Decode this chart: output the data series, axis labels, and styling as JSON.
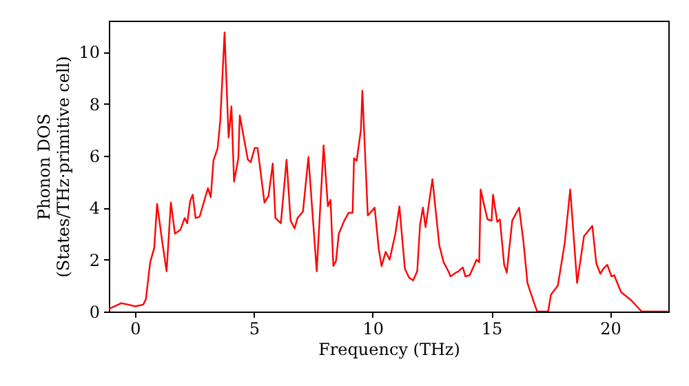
{
  "chart_data": {
    "type": "line",
    "xlabel": "Frequency (THz)",
    "ylabel": "Phonon DOS\n(States/THz·primitive cell)",
    "xlim": [
      -1.1,
      22.45
    ],
    "ylim": [
      0,
      11.2
    ],
    "xticks": [
      0,
      5,
      10,
      15,
      20
    ],
    "yticks": [
      0,
      2,
      4,
      6,
      8,
      10
    ],
    "marker": "none",
    "line_style": "solid",
    "x": [
      -1.1,
      -0.58,
      -0.29,
      0,
      0.35,
      0.46,
      0.64,
      0.81,
      0.93,
      1.16,
      1.33,
      1.51,
      1.68,
      1.91,
      2.09,
      2.2,
      2.32,
      2.43,
      2.55,
      2.72,
      3.07,
      3.19,
      3.3,
      3.48,
      3.59,
      3.77,
      3.94,
      4.06,
      4.17,
      4.35,
      4.41,
      4.58,
      4.75,
      4.87,
      5.04,
      5.16,
      5.33,
      5.45,
      5.62,
      5.8,
      5.91,
      6.14,
      6.38,
      6.55,
      6.72,
      6.84,
      7.07,
      7.3,
      7.65,
      7.94,
      8.12,
      8.23,
      8.35,
      8.46,
      8.58,
      8.81,
      8.99,
      9.16,
      9.22,
      9.33,
      9.51,
      9.57,
      9.8,
      10.09,
      10.26,
      10.38,
      10.55,
      10.72,
      10.96,
      11.13,
      11.36,
      11.54,
      11.71,
      11.88,
      12.0,
      12.12,
      12.23,
      12.52,
      12.81,
      12.99,
      13.22,
      13.28,
      13.51,
      13.62,
      13.8,
      13.91,
      14.09,
      14.38,
      14.49,
      14.55,
      14.72,
      14.84,
      15.01,
      15.07,
      15.25,
      15.36,
      15.54,
      15.65,
      15.88,
      16.17,
      16.35,
      16.52,
      16.81,
      16.93,
      17.39,
      17.51,
      17.8,
      18.09,
      18.32,
      18.61,
      18.9,
      19.25,
      19.42,
      19.59,
      19.71,
      19.88,
      20.06,
      20.17,
      20.46,
      20.87,
      21.33,
      22.43
    ],
    "series": [
      {
        "color": "#ff0000",
        "values": [
          0.1,
          0.32,
          0.27,
          0.2,
          0.27,
          0.48,
          1.9,
          2.45,
          4.15,
          2.6,
          1.55,
          4.2,
          3.0,
          3.15,
          3.6,
          3.4,
          4.25,
          4.5,
          3.6,
          3.65,
          4.75,
          4.4,
          5.8,
          6.3,
          7.35,
          10.75,
          6.7,
          7.9,
          5.0,
          5.9,
          7.55,
          6.7,
          5.85,
          5.75,
          6.3,
          6.3,
          5.05,
          4.2,
          4.45,
          5.7,
          3.6,
          3.4,
          5.85,
          3.5,
          3.2,
          3.6,
          3.85,
          5.95,
          1.55,
          6.4,
          4.05,
          4.3,
          1.75,
          1.95,
          3.0,
          3.5,
          3.8,
          3.8,
          5.9,
          5.8,
          7.0,
          8.5,
          3.7,
          4.0,
          2.4,
          1.75,
          2.3,
          2.0,
          3.0,
          4.05,
          1.65,
          1.3,
          1.2,
          1.55,
          3.35,
          4.0,
          3.25,
          5.1,
          2.55,
          1.9,
          1.5,
          1.35,
          1.5,
          1.55,
          1.7,
          1.35,
          1.4,
          2.0,
          1.9,
          4.7,
          4.0,
          3.55,
          3.5,
          4.5,
          3.45,
          3.55,
          1.8,
          1.5,
          3.5,
          4.0,
          2.7,
          1.1,
          0.3,
          0,
          0,
          0.65,
          1.0,
          2.65,
          4.7,
          1.1,
          2.9,
          3.3,
          1.85,
          1.45,
          1.65,
          1.8,
          1.35,
          1.4,
          0.75,
          0.45,
          0,
          0
        ]
      }
    ]
  }
}
